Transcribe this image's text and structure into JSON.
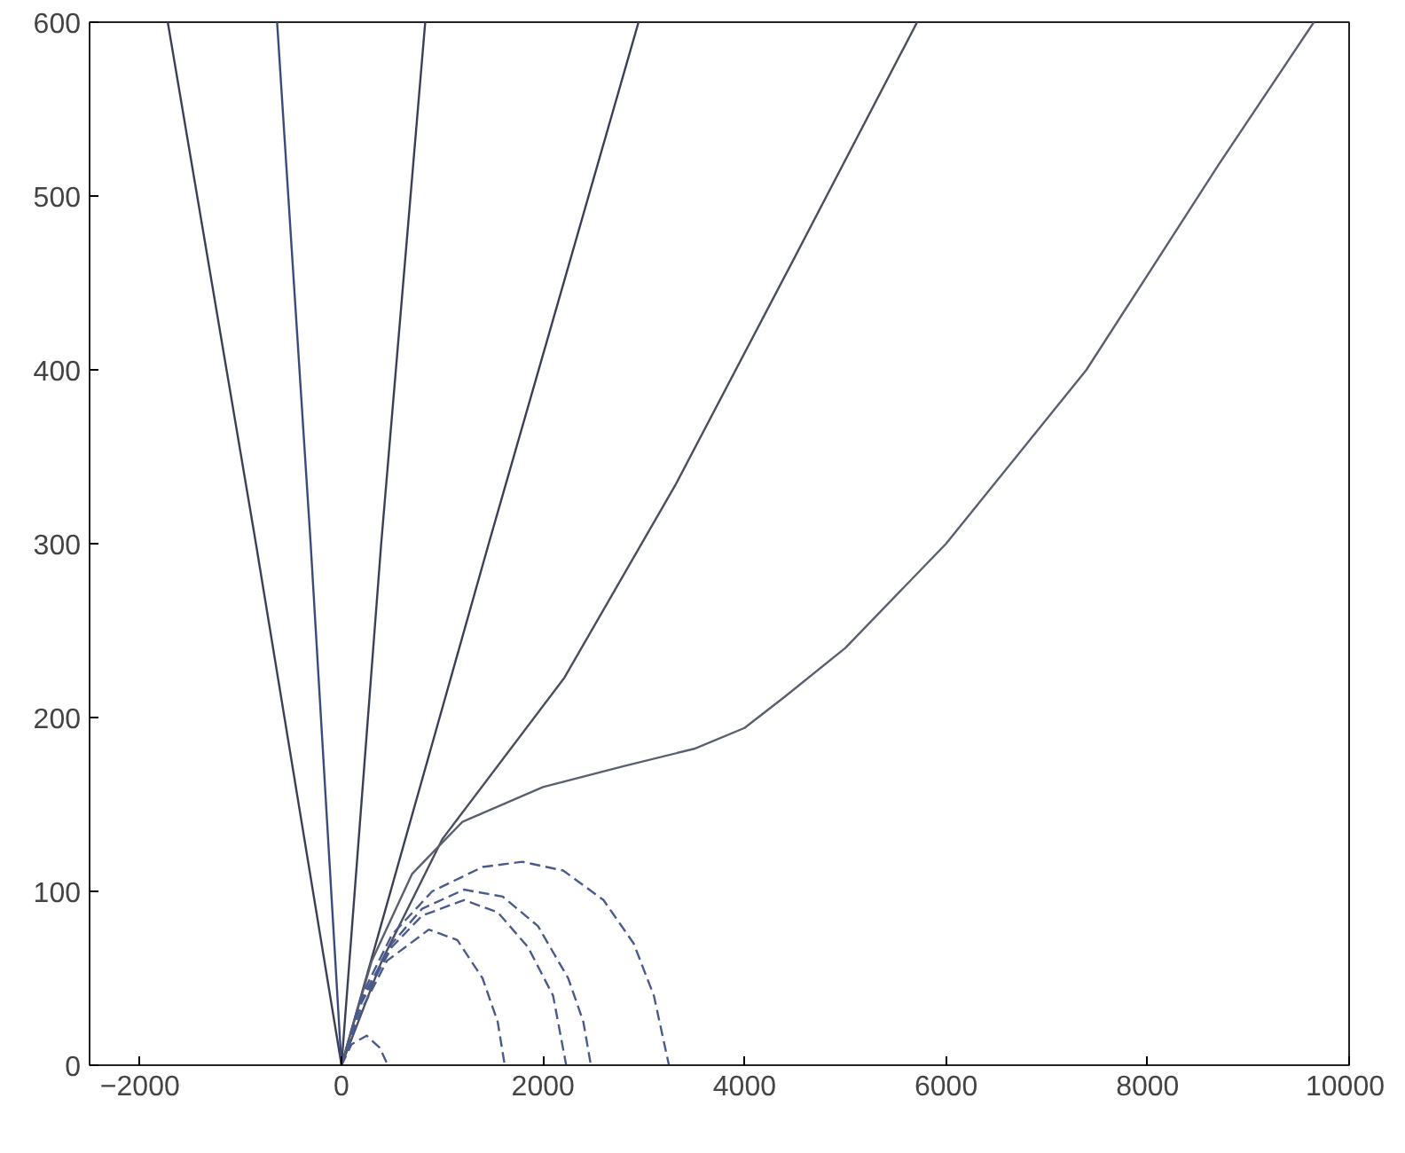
{
  "chart_data": {
    "type": "line",
    "xlim": [
      -2500,
      10000
    ],
    "ylim": [
      0,
      600
    ],
    "xticks": [
      -2000,
      0,
      2000,
      4000,
      6000,
      8000,
      10000
    ],
    "yticks": [
      0,
      100,
      200,
      300,
      400,
      500,
      600
    ],
    "grid": false,
    "series": [
      {
        "color": "#3a3f55",
        "line_style": "solid",
        "x": [
          0,
          -849,
          -1724
        ],
        "values": [
          0,
          300,
          600
        ]
      },
      {
        "color": "#3a4a7a",
        "line_style": "solid",
        "x": [
          0,
          -306,
          -639
        ],
        "values": [
          0,
          300,
          600
        ]
      },
      {
        "color": "#3a3f55",
        "line_style": "solid",
        "x": [
          0,
          394,
          831
        ],
        "values": [
          0,
          300,
          600
        ]
      },
      {
        "color": "#3a3f55",
        "line_style": "solid",
        "x": [
          0,
          1461,
          2948
        ],
        "values": [
          0,
          300,
          600
        ]
      },
      {
        "color": "#4a4f60",
        "line_style": "solid",
        "x": [
          0,
          400,
          1000,
          2213,
          3316,
          4500,
          5713
        ],
        "values": [
          0,
          60,
          130,
          223,
          334,
          465,
          600
        ]
      },
      {
        "color": "#5a5f70",
        "line_style": "solid",
        "x": [
          0,
          300,
          700,
          1200,
          2000,
          2800,
          3500,
          4000,
          4400,
          5000,
          6000,
          7393,
          8705,
          9650
        ],
        "values": [
          0,
          60,
          110,
          140,
          160,
          172,
          182,
          194,
          212,
          240,
          300,
          400,
          518,
          600
        ]
      },
      {
        "color": "#4a5a8c",
        "line_style": "dashed",
        "x": [
          0,
          200,
          500,
          900,
          1400,
          1794,
          2200,
          2600,
          2900,
          3100,
          3250
        ],
        "values": [
          0,
          40,
          75,
          100,
          114,
          117,
          112,
          95,
          70,
          40,
          0
        ]
      },
      {
        "color": "#4a5a8c",
        "line_style": "dashed",
        "x": [
          0,
          200,
          500,
          800,
          1216,
          1600,
          1950,
          2250,
          2400,
          2475
        ],
        "values": [
          0,
          38,
          70,
          90,
          101,
          97,
          80,
          50,
          25,
          0
        ]
      },
      {
        "color": "#4a5a8c",
        "line_style": "dashed",
        "x": [
          0,
          200,
          500,
          800,
          1216,
          1550,
          1850,
          2100,
          2230
        ],
        "values": [
          0,
          36,
          68,
          86,
          95,
          88,
          68,
          40,
          0
        ]
      },
      {
        "color": "#4a5a8c",
        "line_style": "dashed",
        "x": [
          0,
          200,
          450,
          866,
          1150,
          1400,
          1550,
          1620
        ],
        "values": [
          0,
          32,
          60,
          78,
          72,
          50,
          25,
          0
        ]
      },
      {
        "color": "#4a5a8c",
        "line_style": "dashed",
        "x": [
          0,
          100,
          250,
          380,
          460
        ],
        "values": [
          0,
          12,
          17,
          10,
          0
        ]
      }
    ]
  }
}
